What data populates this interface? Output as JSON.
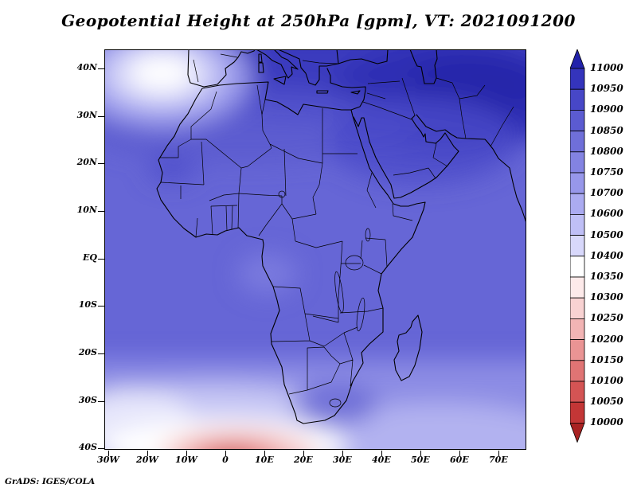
{
  "title": "Geopotential Height at 250hPa [gpm], VT: 2021091200",
  "credit": "GrADS: IGES/COLA",
  "chart_data": {
    "type": "heatmap",
    "title": "Geopotential Height at 250hPa [gpm], VT: 2021091200",
    "variable": "Geopotential Height",
    "level": "250hPa",
    "units": "gpm",
    "valid_time": "2021091200",
    "region": "Africa and surroundings, 30W-77E, 40S-44N",
    "x_axis": {
      "label": "longitude",
      "ticks": [
        "30W",
        "20W",
        "10W",
        "0",
        "10E",
        "20E",
        "30E",
        "40E",
        "50E",
        "60E",
        "70E"
      ]
    },
    "y_axis": {
      "label": "latitude",
      "ticks": [
        "40N",
        "30N",
        "20N",
        "10N",
        "EQ",
        "10S",
        "20S",
        "30S",
        "40S"
      ]
    },
    "colorbar": {
      "levels": [
        11000,
        10950,
        10900,
        10850,
        10800,
        10750,
        10700,
        10600,
        10500,
        10400,
        10350,
        10300,
        10250,
        10200,
        10150,
        10100,
        10050,
        10000
      ],
      "colors": [
        "#2222aa",
        "#3434bc",
        "#4747c7",
        "#5b5bd1",
        "#6f6fd9",
        "#8383e2",
        "#9797ea",
        "#ababf1",
        "#bfbff6",
        "#d8d8fb",
        "#ffffff",
        "#fdeaea",
        "#f8d2d2",
        "#f2b4b4",
        "#ea9494",
        "#e07474",
        "#d45454",
        "#c33636",
        "#a82222"
      ]
    },
    "estimated_field": {
      "note": "geopotential height (gpm) estimated from color shading",
      "lons": [
        -30,
        -20,
        -10,
        0,
        10,
        20,
        30,
        40,
        50,
        60,
        70
      ],
      "lats": [
        40,
        30,
        20,
        10,
        0,
        -10,
        -20,
        -30,
        -40
      ],
      "values": [
        [
          10600,
          10500,
          10650,
          10750,
          10800,
          10850,
          10850,
          10900,
          10950,
          10950,
          10950
        ],
        [
          10750,
          10800,
          10850,
          10850,
          10850,
          10900,
          10900,
          10950,
          10950,
          10950,
          10950
        ],
        [
          10800,
          10850,
          10850,
          10850,
          10850,
          10850,
          10900,
          10900,
          10900,
          10900,
          10900
        ],
        [
          10850,
          10850,
          10850,
          10850,
          10850,
          10850,
          10850,
          10850,
          10850,
          10850,
          10850
        ],
        [
          10850,
          10850,
          10850,
          10850,
          10850,
          10850,
          10850,
          10850,
          10850,
          10850,
          10850
        ],
        [
          10800,
          10800,
          10800,
          10850,
          10850,
          10850,
          10850,
          10850,
          10850,
          10800,
          10800
        ],
        [
          10750,
          10750,
          10750,
          10800,
          10800,
          10800,
          10800,
          10800,
          10750,
          10750,
          10700
        ],
        [
          10600,
          10600,
          10550,
          10500,
          10550,
          10600,
          10650,
          10700,
          10650,
          10600,
          10600
        ],
        [
          10450,
          10400,
          10300,
          10150,
          10100,
          10200,
          10400,
          10500,
          10550,
          10500,
          10450
        ]
      ],
      "notable_features": [
        "closed low (white core, ~10450 gpm) near 42N 20W",
        "broad high band >10950 gpm over Middle East / NE of map",
        "strong gradient with low heights (<10100 gpm, red core) near 40S 8E"
      ]
    }
  }
}
